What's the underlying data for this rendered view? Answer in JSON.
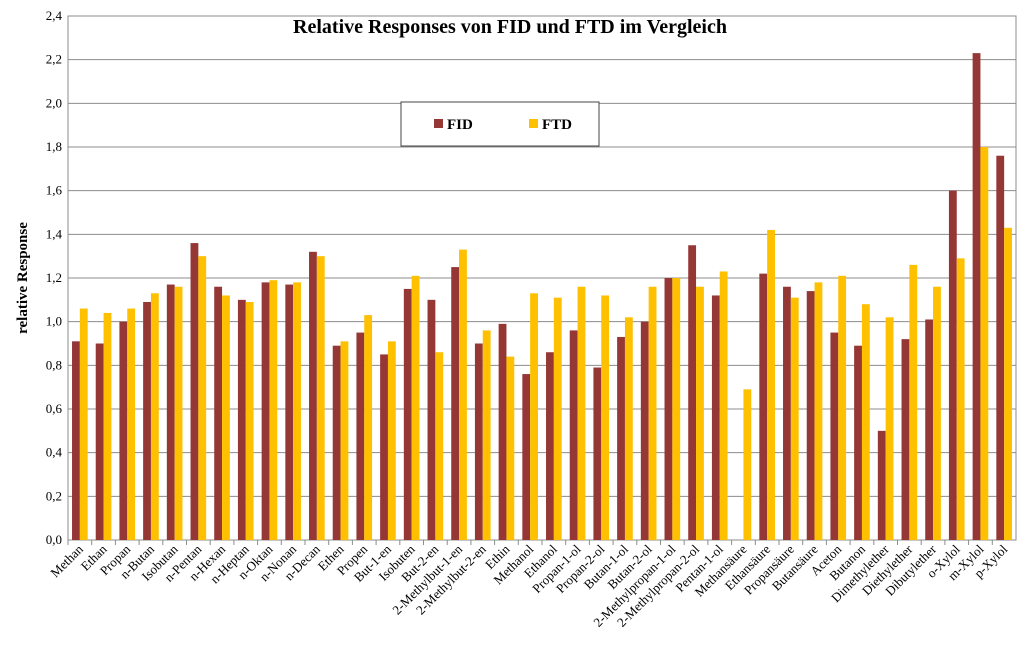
{
  "chart_data": {
    "type": "bar",
    "title": "Relative Responses von FID und FTD im Vergleich",
    "xlabel": "",
    "ylabel": "relative Response",
    "ylim": [
      0,
      2.4
    ],
    "yticks": [
      "0,0",
      "0,2",
      "0,4",
      "0,6",
      "0,8",
      "1,0",
      "1,2",
      "1,4",
      "1,6",
      "1,8",
      "2,0",
      "2,2",
      "2,4"
    ],
    "grid": true,
    "legend_position": "top-center",
    "categories": [
      "Methan",
      "Ethan",
      "Propan",
      "n-Butan",
      "Isobutan",
      "n-Pentan",
      "n-Hexan",
      "n-Heptan",
      "n-Oktan",
      "n-Nonan",
      "n-Decan",
      "Ethen",
      "Propen",
      "But-1-en",
      "Isobuten",
      "But-2-en",
      "2-Methylbut-1-en",
      "2-Methylbut-2-en",
      "Ethin",
      "Methanol",
      "Ethanol",
      "Propan-1-ol",
      "Propan-2-ol",
      "Butan-1-ol",
      "Butan-2-ol",
      "2-Methylpropan-1-ol",
      "2-Methylpropan-2-ol",
      "Pentan-1-ol",
      "Methansäure",
      "Ethansäure",
      "Propansäure",
      "Butansäure",
      "Aceton",
      "Butanon",
      "Dimethylether",
      "Diethylether",
      "Dibutylether",
      "o-Xylol",
      "m-Xylol",
      "p-Xylol"
    ],
    "series": [
      {
        "name": "FID",
        "color": "#953735",
        "values": [
          0.91,
          0.9,
          1.0,
          1.09,
          1.17,
          1.36,
          1.16,
          1.1,
          1.18,
          1.17,
          1.32,
          0.89,
          0.95,
          0.85,
          1.15,
          1.1,
          1.25,
          0.9,
          0.99,
          0.76,
          0.86,
          0.96,
          0.79,
          0.93,
          1.0,
          1.2,
          1.35,
          1.12,
          0,
          1.22,
          1.16,
          1.14,
          0.95,
          0.89,
          0.5,
          0.92,
          1.01,
          1.6,
          2.23,
          1.76
        ]
      },
      {
        "name": "FTD",
        "color": "#FFC000",
        "values": [
          1.06,
          1.04,
          1.06,
          1.13,
          1.16,
          1.3,
          1.12,
          1.09,
          1.19,
          1.18,
          1.3,
          0.91,
          1.03,
          0.91,
          1.21,
          0.86,
          1.33,
          0.96,
          0.84,
          1.13,
          1.11,
          1.16,
          1.12,
          1.02,
          1.16,
          1.2,
          1.16,
          1.23,
          0.69,
          1.42,
          1.11,
          1.18,
          1.21,
          1.08,
          1.02,
          1.26,
          1.16,
          1.29,
          1.8,
          1.43
        ]
      }
    ]
  }
}
